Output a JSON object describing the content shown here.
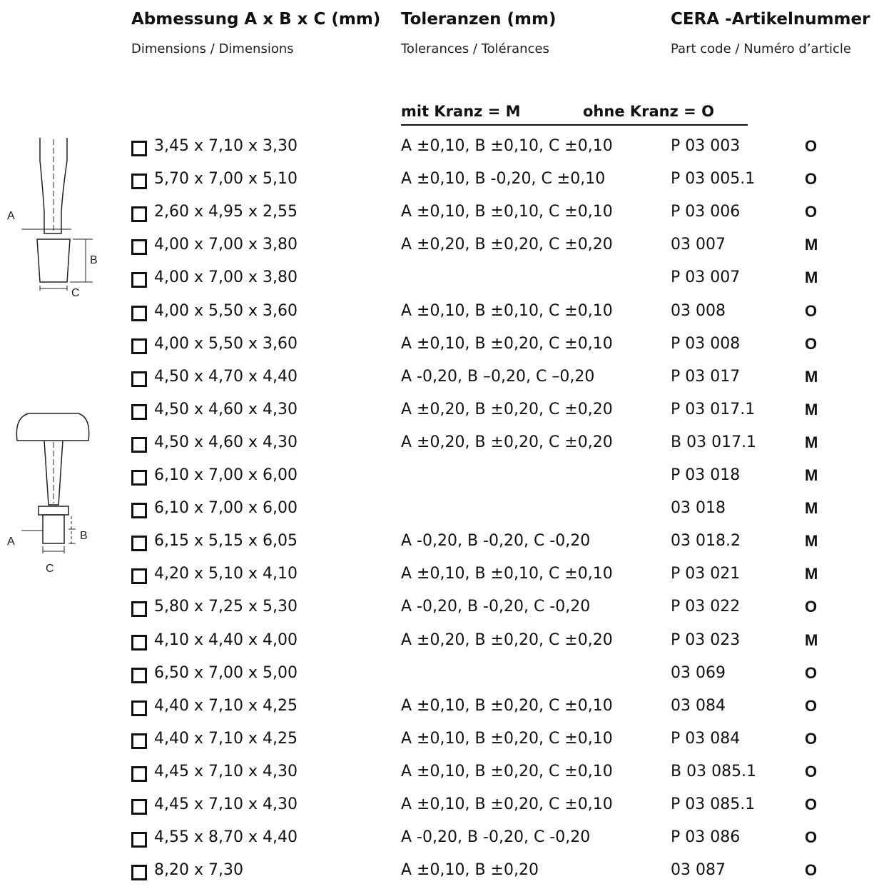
{
  "headers": {
    "dimensions_de": "Abmessung A x B x C (mm)",
    "dimensions_sub": "Dimensions / Dimensions",
    "tolerances_de": "Toleranzen (mm)",
    "tolerances_sub": "Tolerances / Tolérances",
    "part_de": "CERA -Artikelnummer",
    "part_sub": "Part code / Numéro d’article"
  },
  "legend": {
    "with_rim": "mit Kranz = M",
    "without_rim": "ohne Kranz = O"
  },
  "diagram_labels": {
    "top": {
      "a": "A",
      "b": "B",
      "c": "C"
    },
    "bottom": {
      "a": "A",
      "b": "B",
      "c": "C"
    }
  },
  "rows": [
    {
      "dim": "3,45 x 7,10 x 3,30",
      "tol": "A ±0,10, B ±0,10, C ±0,10",
      "code": "P 03 003",
      "flag": "O"
    },
    {
      "dim": "5,70 x 7,00 x 5,10",
      "tol": "A ±0,10, B -0,20, C ±0,10",
      "code": "P 03 005.1",
      "flag": "O"
    },
    {
      "dim": "2,60 x 4,95 x 2,55",
      "tol": "A ±0,10, B ±0,10, C ±0,10",
      "code": "P 03 006",
      "flag": "O"
    },
    {
      "dim": "4,00 x 7,00 x 3,80",
      "tol": "A ±0,20, B ±0,20, C ±0,20",
      "code": "03 007",
      "flag": "M"
    },
    {
      "dim": "4,00 x 7,00 x 3,80",
      "tol": "",
      "code": "P 03 007",
      "flag": "M"
    },
    {
      "dim": "4,00 x 5,50 x 3,60",
      "tol": "A ±0,10, B ±0,10, C ±0,10",
      "code": "03 008",
      "flag": "O"
    },
    {
      "dim": "4,00 x 5,50 x 3,60",
      "tol": "A ±0,10, B ±0,20, C ±0,10",
      "code": "P 03 008",
      "flag": "O"
    },
    {
      "dim": "4,50 x 4,70 x 4,40",
      "tol": "A -0,20, B –0,20, C –0,20",
      "code": "P 03 017",
      "flag": "M"
    },
    {
      "dim": "4,50 x 4,60 x 4,30",
      "tol": "A ±0,20, B ±0,20, C ±0,20",
      "code": "P 03 017.1",
      "flag": "M"
    },
    {
      "dim": "4,50 x 4,60 x 4,30",
      "tol": "A ±0,20, B ±0,20, C ±0,20",
      "code": "B 03 017.1",
      "flag": "M"
    },
    {
      "dim": "6,10 x 7,00 x 6,00",
      "tol": "",
      "code": "P 03 018",
      "flag": "M"
    },
    {
      "dim": "6,10 x 7,00 x 6,00",
      "tol": "",
      "code": "03 018",
      "flag": "M"
    },
    {
      "dim": "6,15 x 5,15 x 6,05",
      "tol": "A -0,20, B -0,20, C -0,20",
      "code": "03 018.2",
      "flag": "M"
    },
    {
      "dim": "4,20 x 5,10 x 4,10",
      "tol": "A ±0,10, B ±0,10, C ±0,10",
      "code": "P 03 021",
      "flag": "M"
    },
    {
      "dim": "5,80 x 7,25 x 5,30",
      "tol": "A -0,20, B -0,20, C -0,20",
      "code": "P 03 022",
      "flag": "O"
    },
    {
      "dim": "4,10 x 4,40 x 4,00",
      "tol": "A ±0,20, B ±0,20, C ±0,20",
      "code": "P 03 023",
      "flag": "M"
    },
    {
      "dim": "6,50 x 7,00 x 5,00",
      "tol": "",
      "code": "03 069",
      "flag": "O"
    },
    {
      "dim": "4,40 x 7,10 x 4,25",
      "tol": "A ±0,10, B ±0,20, C ±0,10",
      "code": "03 084",
      "flag": "O"
    },
    {
      "dim": "4,40 x 7,10 x 4,25",
      "tol": "A ±0,10, B ±0,20, C ±0,10",
      "code": "P 03 084",
      "flag": "O"
    },
    {
      "dim": "4,45 x 7,10 x 4,30",
      "tol": "A ±0,10, B ±0,20, C ±0,10",
      "code": "B 03 085.1",
      "flag": "O"
    },
    {
      "dim": "4,45 x 7,10 x 4,30",
      "tol": "A ±0,10, B ±0,20, C ±0,10",
      "code": "P 03 085.1",
      "flag": "O"
    },
    {
      "dim": "4,55 x 8,70 x 4,40",
      "tol": "A -0,20, B -0,20, C -0,20",
      "code": "P 03 086",
      "flag": "O"
    },
    {
      "dim": "8,20 x 7,30",
      "tol": "A ±0,10, B ±0,20",
      "code": "03 087",
      "flag": "O"
    }
  ]
}
